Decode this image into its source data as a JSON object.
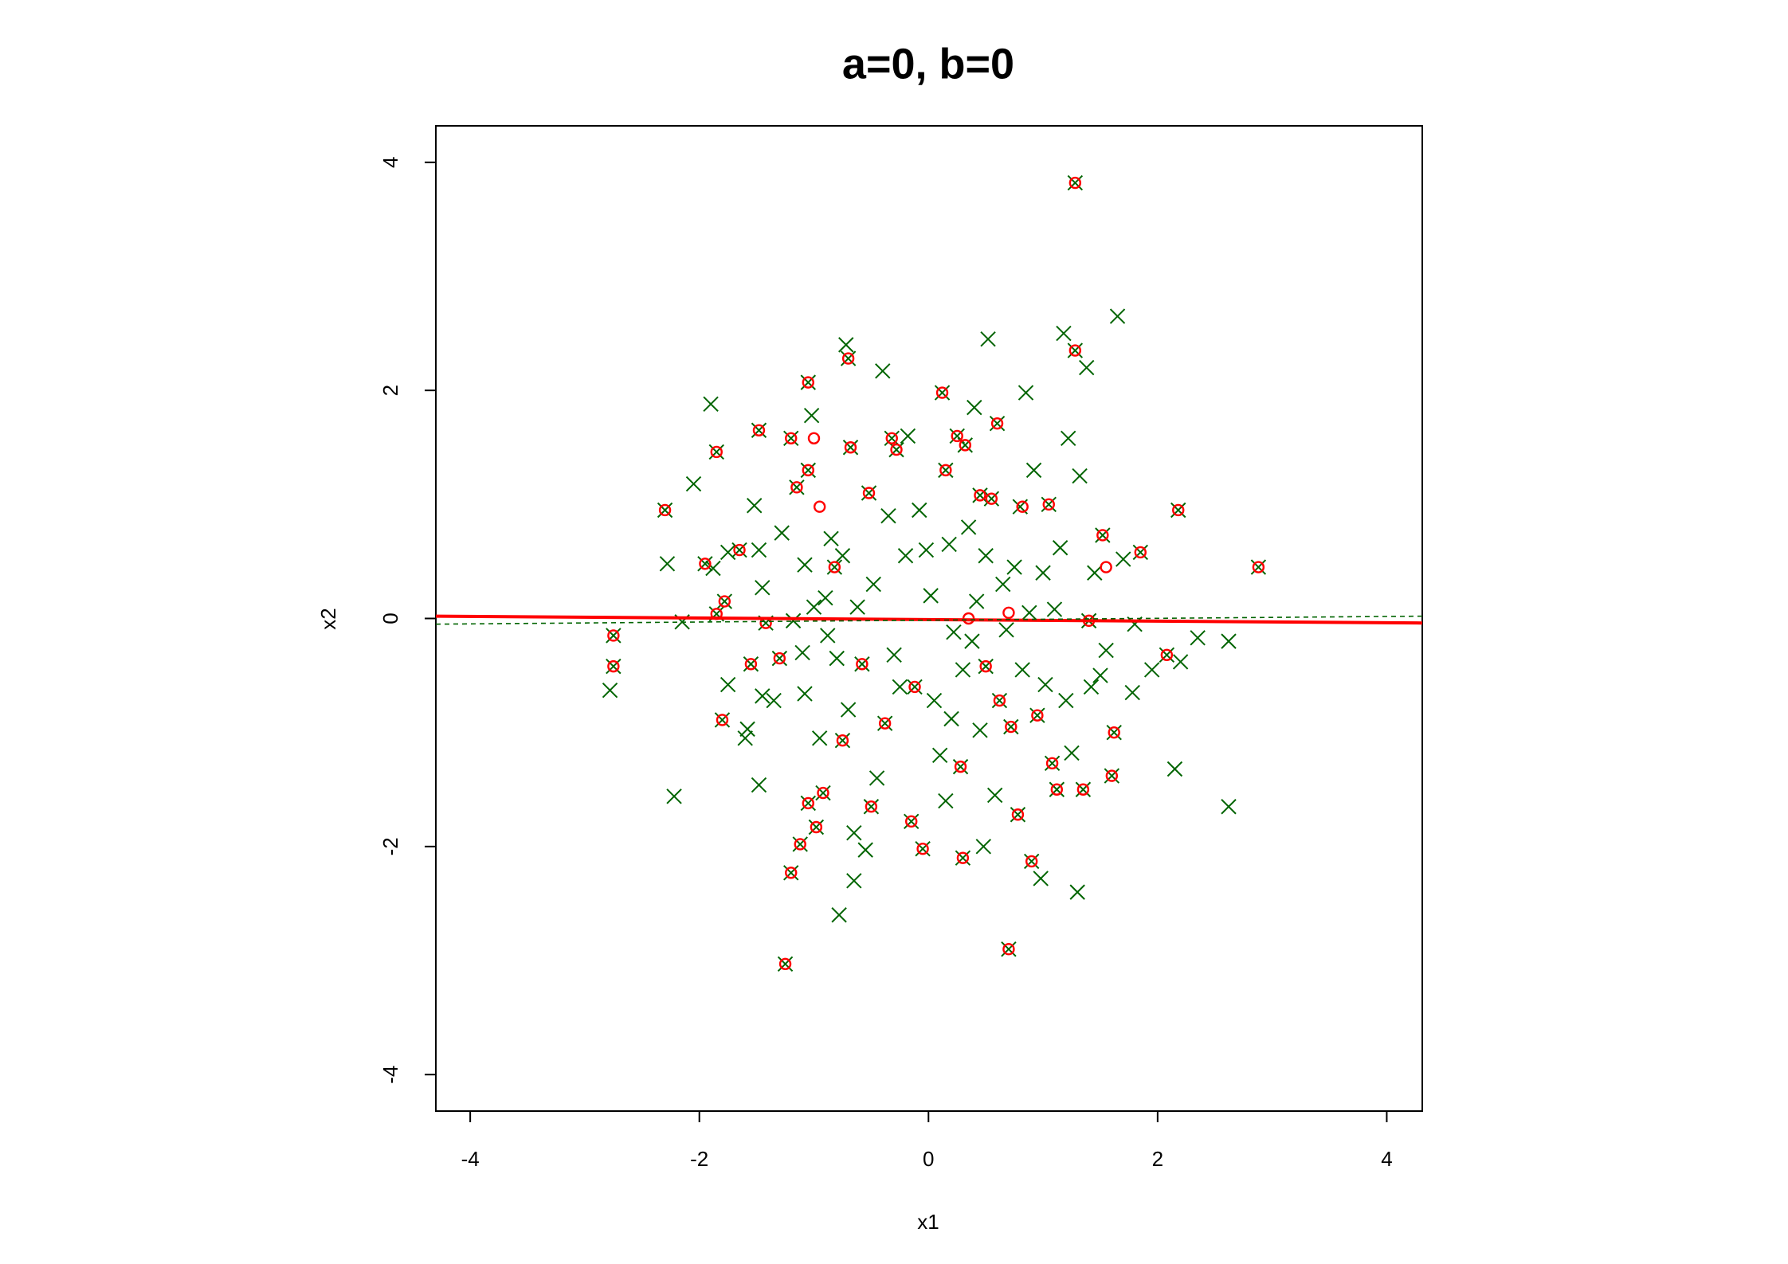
{
  "chart_data": {
    "type": "scatter",
    "title": "a=0, b=0",
    "x_label": "x1",
    "y_label": "x2",
    "xlim": [
      -4.3,
      4.31
    ],
    "ylim": [
      -4.32,
      4.32
    ],
    "xticks": [
      -4,
      -2,
      0,
      2,
      4
    ],
    "yticks": [
      -4,
      -2,
      0,
      2,
      4
    ],
    "grid": false,
    "series": [
      {
        "color": "#006400",
        "marker": "x",
        "x": [
          -2.75,
          -2.75,
          -2.78,
          -2.3,
          -2.28,
          -2.22,
          -2.15,
          -2.05,
          -1.95,
          -1.9,
          -1.88,
          -1.85,
          -1.85,
          -1.8,
          -1.78,
          -1.75,
          -1.75,
          -1.65,
          -1.6,
          -1.58,
          -1.55,
          -1.52,
          -1.48,
          -1.48,
          -1.48,
          -1.45,
          -1.45,
          -1.42,
          -1.35,
          -1.3,
          -1.28,
          -1.25,
          -1.2,
          -1.2,
          -1.18,
          -1.15,
          -1.12,
          -1.1,
          -1.08,
          -1.08,
          -1.05,
          -1.05,
          -1.05,
          -1.02,
          -1.0,
          -0.98,
          -0.95,
          -0.92,
          -0.9,
          -0.88,
          -0.85,
          -0.82,
          -0.8,
          -0.78,
          -0.75,
          -0.75,
          -0.72,
          -0.7,
          -0.7,
          -0.68,
          -0.65,
          -0.65,
          -0.62,
          -0.58,
          -0.55,
          -0.52,
          -0.5,
          -0.48,
          -0.45,
          -0.4,
          -0.38,
          -0.35,
          -0.32,
          -0.3,
          -0.28,
          -0.25,
          -0.2,
          -0.18,
          -0.15,
          -0.12,
          -0.08,
          -0.05,
          -0.02,
          0.02,
          0.05,
          0.1,
          0.12,
          0.15,
          0.15,
          0.18,
          0.2,
          0.22,
          0.25,
          0.28,
          0.3,
          0.32,
          0.35,
          0.38,
          0.4,
          0.42,
          0.45,
          0.48,
          0.5,
          0.52,
          0.55,
          0.58,
          0.6,
          0.62,
          0.65,
          0.68,
          0.7,
          0.72,
          0.75,
          0.78,
          0.8,
          0.82,
          0.85,
          0.88,
          0.9,
          0.92,
          0.95,
          0.98,
          1.0,
          1.02,
          1.05,
          1.08,
          1.1,
          1.12,
          1.15,
          1.18,
          1.2,
          1.22,
          1.25,
          1.28,
          1.28,
          1.3,
          1.32,
          1.35,
          1.38,
          1.4,
          1.42,
          1.45,
          1.5,
          1.52,
          1.55,
          1.6,
          1.62,
          1.65,
          1.7,
          1.78,
          1.8,
          1.85,
          1.95,
          2.08,
          2.15,
          2.18,
          2.2,
          2.35,
          2.62,
          2.62,
          2.88,
          0.3,
          0.45,
          0.5
        ],
        "values": [
          -0.15,
          -0.42,
          -0.63,
          0.95,
          0.48,
          -1.56,
          -0.03,
          1.18,
          0.48,
          1.88,
          0.44,
          1.46,
          0.04,
          -0.89,
          0.15,
          -0.58,
          0.58,
          0.6,
          -1.05,
          -0.97,
          -0.4,
          0.99,
          0.6,
          1.65,
          -1.46,
          0.27,
          -0.68,
          -0.04,
          -0.72,
          -0.35,
          0.75,
          -3.03,
          1.58,
          -2.23,
          -0.02,
          1.15,
          -1.98,
          -0.3,
          0.47,
          -0.66,
          1.3,
          2.07,
          -1.62,
          1.78,
          0.1,
          -1.83,
          -1.05,
          -1.53,
          0.18,
          -0.15,
          0.7,
          0.45,
          -0.35,
          -2.6,
          0.55,
          -1.07,
          2.4,
          2.28,
          -0.8,
          1.5,
          -1.88,
          -2.3,
          0.1,
          -0.4,
          -2.03,
          1.1,
          -1.65,
          0.3,
          -1.4,
          2.17,
          -0.92,
          0.9,
          1.58,
          -0.32,
          1.48,
          -0.6,
          0.55,
          1.6,
          -1.78,
          -0.6,
          0.95,
          -2.02,
          0.6,
          0.2,
          -0.72,
          -1.2,
          1.98,
          -1.6,
          1.3,
          0.65,
          -0.88,
          -0.12,
          1.6,
          -1.3,
          -0.45,
          1.52,
          0.8,
          -0.2,
          1.85,
          0.15,
          -0.98,
          -2.0,
          0.55,
          2.45,
          1.05,
          -1.55,
          1.71,
          -0.72,
          0.3,
          -0.1,
          -2.9,
          -0.95,
          0.45,
          -1.72,
          0.98,
          -0.45,
          1.98,
          0.05,
          -2.13,
          1.3,
          -0.85,
          -2.28,
          0.4,
          -0.58,
          1.0,
          -1.27,
          0.08,
          -1.5,
          0.62,
          2.5,
          -0.72,
          1.58,
          -1.18,
          3.82,
          2.35,
          -2.4,
          1.25,
          -1.5,
          2.2,
          -0.02,
          -0.6,
          0.4,
          -0.5,
          0.73,
          -0.28,
          -1.38,
          -1.0,
          2.65,
          0.52,
          -0.65,
          -0.05,
          0.58,
          -0.45,
          -0.32,
          -1.32,
          0.95,
          -0.38,
          -0.17,
          -1.65,
          -0.2,
          0.45,
          -2.1,
          1.08,
          -0.42
        ]
      },
      {
        "color": "#ff0000",
        "marker": "o",
        "x": [
          -2.75,
          -2.75,
          -2.3,
          -1.95,
          -1.85,
          -1.85,
          -1.8,
          -1.78,
          -1.65,
          -1.55,
          -1.48,
          -1.42,
          -1.3,
          -1.25,
          -1.2,
          -1.2,
          -1.15,
          -1.12,
          -1.05,
          -1.05,
          -1.05,
          -1.0,
          -0.95,
          -0.98,
          -0.92,
          -0.82,
          -0.75,
          -0.7,
          -0.68,
          -0.58,
          -0.52,
          -0.5,
          -0.38,
          -0.32,
          -0.28,
          -0.15,
          -0.12,
          -0.05,
          0.12,
          0.15,
          0.25,
          0.28,
          0.3,
          0.32,
          0.35,
          0.45,
          0.5,
          0.55,
          0.6,
          0.62,
          0.7,
          0.7,
          0.72,
          0.78,
          0.82,
          0.9,
          0.95,
          1.05,
          1.08,
          1.12,
          1.28,
          1.28,
          1.35,
          1.4,
          1.52,
          1.55,
          1.62,
          1.6,
          1.85,
          2.08,
          2.18,
          2.88
        ],
        "values": [
          -0.15,
          -0.42,
          0.95,
          0.48,
          1.46,
          0.04,
          -0.89,
          0.15,
          0.6,
          -0.4,
          1.65,
          -0.04,
          -0.35,
          -3.03,
          1.58,
          -2.23,
          1.15,
          -1.98,
          2.07,
          1.3,
          -1.62,
          1.58,
          0.98,
          -1.83,
          -1.53,
          0.45,
          -1.07,
          2.28,
          1.5,
          -0.4,
          1.1,
          -1.65,
          -0.92,
          1.58,
          1.48,
          -1.78,
          -0.6,
          -2.02,
          1.98,
          1.3,
          1.6,
          -1.3,
          -2.1,
          1.52,
          0.0,
          1.08,
          -0.42,
          1.05,
          1.71,
          -0.72,
          -2.9,
          0.05,
          -0.95,
          -1.72,
          0.98,
          -2.13,
          -0.85,
          1.0,
          -1.27,
          -1.5,
          3.82,
          2.35,
          -1.5,
          -0.02,
          0.73,
          0.45,
          -1.0,
          -1.38,
          0.58,
          -0.32,
          0.95,
          0.45
        ]
      },
      {
        "color": "#ff0000",
        "marker": "line",
        "x": [
          -4.3,
          4.31
        ],
        "values": [
          0.02,
          -0.04
        ]
      },
      {
        "color": "#006400",
        "marker": "dashed",
        "x": [
          -4.3,
          4.31
        ],
        "values": [
          -0.05,
          0.02
        ]
      }
    ]
  }
}
